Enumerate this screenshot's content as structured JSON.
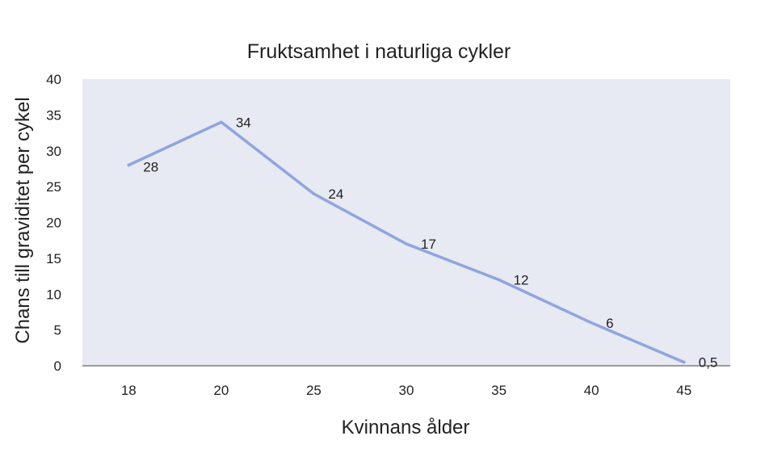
{
  "chart_data": {
    "type": "line",
    "title": "Fruktsamhet i naturliga cykler",
    "xlabel": "Kvinnans ålder",
    "ylabel": "Chans till graviditet per cykel",
    "categories": [
      "18",
      "20",
      "25",
      "30",
      "35",
      "40",
      "45"
    ],
    "series": [
      {
        "values": [
          28,
          34,
          24,
          17,
          12,
          6,
          0.5
        ]
      }
    ],
    "data_labels": [
      "28",
      "34",
      "24",
      "17",
      "12",
      "6",
      "0,5"
    ],
    "y_ticks": [
      "0",
      "5",
      "10",
      "15",
      "20",
      "25",
      "30",
      "35",
      "40"
    ],
    "ylim": [
      0,
      40
    ],
    "grid": false,
    "legend": "none",
    "colors": {
      "line": "#8fa5dc",
      "plot_background": "#e7e9f3",
      "axis": "#7f7f7f"
    }
  }
}
